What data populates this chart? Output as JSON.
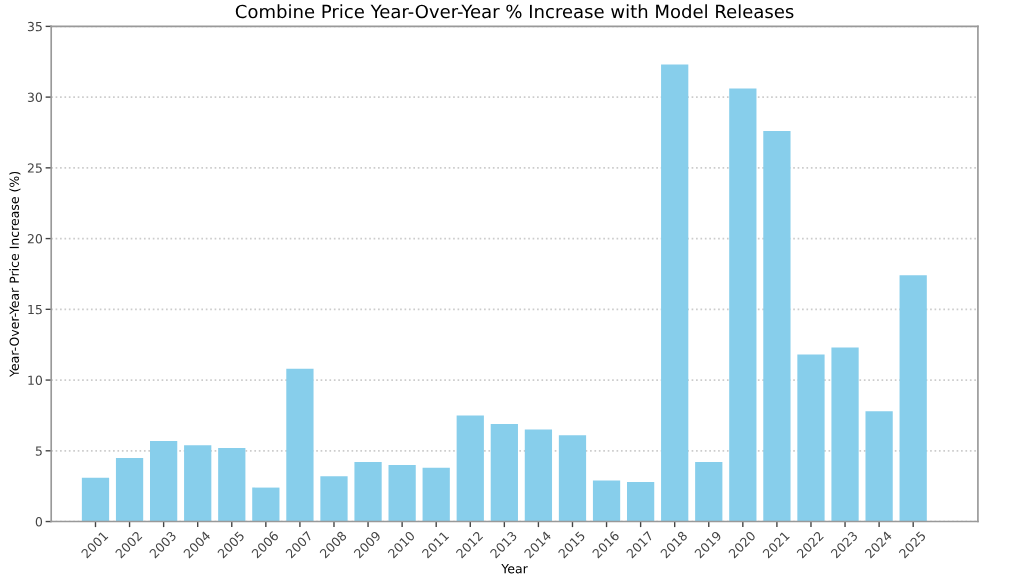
{
  "chart_data": {
    "type": "bar",
    "title": "Combine Price Year-Over-Year % Increase with Model Releases",
    "xlabel": "Year",
    "ylabel": "Year-Over-Year Price Increase (%)",
    "categories": [
      "2001",
      "2002",
      "2003",
      "2004",
      "2005",
      "2006",
      "2007",
      "2008",
      "2009",
      "2010",
      "2011",
      "2012",
      "2013",
      "2014",
      "2015",
      "2016",
      "2017",
      "2018",
      "2019",
      "2020",
      "2021",
      "2022",
      "2023",
      "2024",
      "2025"
    ],
    "values": [
      3.1,
      4.5,
      5.7,
      5.4,
      5.2,
      2.4,
      10.8,
      3.2,
      4.2,
      4.0,
      3.8,
      7.5,
      6.9,
      6.5,
      6.1,
      2.9,
      2.8,
      32.3,
      4.2,
      30.6,
      27.6,
      11.8,
      12.3,
      7.8,
      17.4
    ],
    "color": "#87ceeb",
    "ylim": [
      0,
      35
    ],
    "yticks": [
      0,
      5,
      10,
      15,
      20,
      25,
      30,
      35
    ],
    "grid": "y"
  }
}
